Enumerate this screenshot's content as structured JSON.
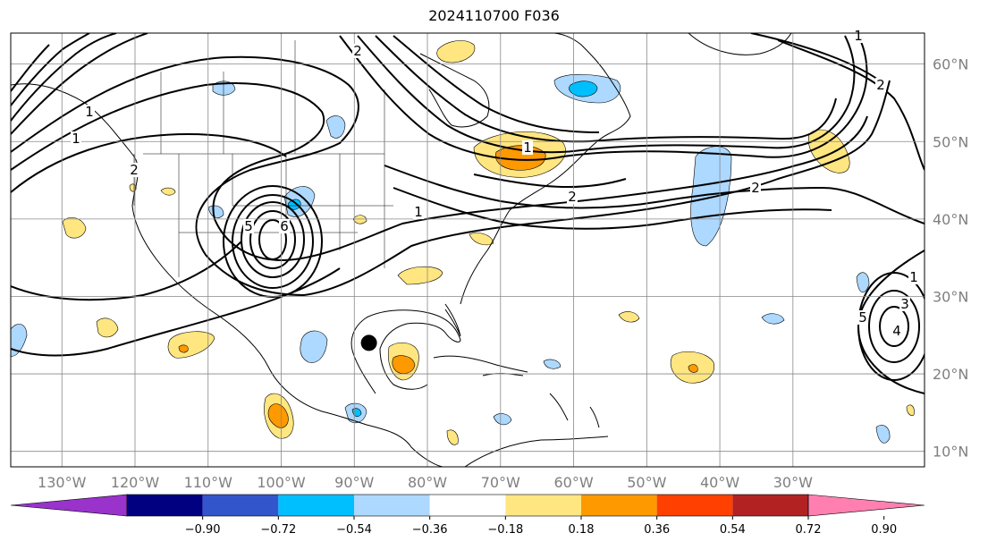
{
  "title": "2024110700 F036",
  "map": {
    "projection": "equirectangular",
    "lon_range": [
      -137,
      -12
    ],
    "lat_range": [
      8,
      64
    ],
    "grid": true,
    "lon_labels": [
      "130°W",
      "120°W",
      "110°W",
      "100°W",
      "90°W",
      "80°W",
      "70°W",
      "60°W",
      "50°W",
      "40°W",
      "30°W"
    ],
    "lat_labels": [
      "10°N",
      "20°N",
      "30°N",
      "40°N",
      "50°N",
      "60°N"
    ],
    "marker": {
      "name": "storm-center",
      "lon": -88,
      "lat": 24
    },
    "contour_labels": [
      "1",
      "2",
      "1",
      "2",
      "1",
      "2",
      "1",
      "2",
      "6",
      "5",
      "1",
      "2",
      "1",
      "3",
      "4",
      "5"
    ]
  },
  "colorbar": {
    "ticks": [
      "−0.90",
      "−0.72",
      "−0.54",
      "−0.36",
      "−0.18",
      "0.18",
      "0.36",
      "0.54",
      "0.72",
      "0.90"
    ],
    "colors": [
      "#9933cc",
      "#000080",
      "#3355cc",
      "#00bfff",
      "#add8ff",
      "#ffffff",
      "#ffe680",
      "#ff9900",
      "#ff4000",
      "#b22222",
      "#ff80b0"
    ],
    "extend": "both"
  }
}
